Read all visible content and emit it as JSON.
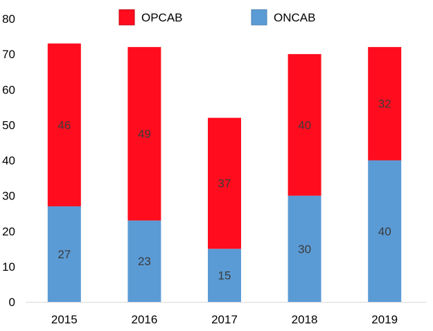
{
  "chart_data": {
    "type": "bar",
    "stacked": true,
    "categories": [
      "2015",
      "2016",
      "2017",
      "2018",
      "2019"
    ],
    "series": [
      {
        "name": "ONCAB",
        "values": [
          27,
          23,
          15,
          30,
          40
        ],
        "color": "#5B9BD5"
      },
      {
        "name": "OPCAB",
        "values": [
          46,
          49,
          37,
          40,
          32
        ],
        "color": "#FF0D1E"
      }
    ],
    "ylim": [
      0,
      80
    ],
    "yticks": [
      0,
      10,
      20,
      30,
      40,
      50,
      60,
      70,
      80
    ],
    "grid": false,
    "legend_position": "top",
    "legend_order": [
      "OPCAB",
      "ONCAB"
    ],
    "title": "",
    "xlabel": "",
    "ylabel": ""
  }
}
